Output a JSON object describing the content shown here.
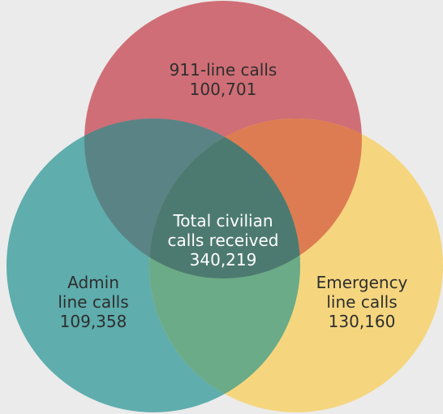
{
  "diagram": {
    "type": "venn",
    "colors": {
      "background": "#ebebeb",
      "top_circle": "#cf6e76",
      "left_circle": "#5fadad",
      "right_circle": "#f5d67f",
      "top_left_overlap": "#5a8385",
      "top_right_overlap": "#dd7c52",
      "left_right_overlap": "#6bab87",
      "center_overlap": "#4d7a70"
    },
    "sets": [
      {
        "id": "911",
        "line1": "911-line calls",
        "value": "100,701"
      },
      {
        "id": "admin",
        "line1": "Admin",
        "line2": "line calls",
        "value": "109,358"
      },
      {
        "id": "emergency",
        "line1": "Emergency",
        "line2": "line calls",
        "value": "130,160"
      }
    ],
    "center": {
      "line1": "Total civilian",
      "line2": "calls received",
      "value": "340,219"
    }
  }
}
